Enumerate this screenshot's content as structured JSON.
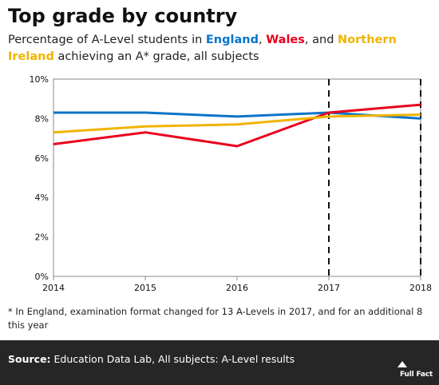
{
  "header": {
    "title": "Top grade by country",
    "subtitle_prefix": "Percentage of A-Level students in ",
    "subtitle_england": "England",
    "subtitle_sep1": ", ",
    "subtitle_wales": "Wales",
    "subtitle_sep2": ", and ",
    "subtitle_ni": "Northern Ireland",
    "subtitle_suffix": " achieving an A* grade, all subjects"
  },
  "footnote": "* In England, examination format changed for 13 A-Levels in 2017, and for an additional 8 this year",
  "footer": {
    "source_label": "Source:",
    "source_text": " Education Data Lab, All subjects: A-Level results",
    "logo_text": "Full Fact"
  },
  "colors": {
    "england": "#0b75c9",
    "wales": "#e8001d",
    "northern_ireland": "#f0b400",
    "footer_bg": "#262626"
  },
  "chart_data": {
    "type": "line",
    "title": "Top grade by country",
    "x": [
      2014,
      2015,
      2016,
      2017,
      2018
    ],
    "x_tick_labels": [
      "2014",
      "2015",
      "2016",
      "2017",
      "2018"
    ],
    "ylim": [
      0,
      10
    ],
    "y_ticks": [
      0,
      2,
      4,
      6,
      8,
      10
    ],
    "y_tick_labels": [
      "0%",
      "2%",
      "4%",
      "6%",
      "8%",
      "10%"
    ],
    "grid": false,
    "dashed_markers_x": [
      2017,
      2018
    ],
    "series": [
      {
        "name": "England",
        "color": "#0b75c9",
        "values": [
          8.3,
          8.3,
          8.1,
          8.3,
          8.0
        ]
      },
      {
        "name": "Wales",
        "color": "#e8001d",
        "values": [
          6.7,
          7.3,
          6.6,
          8.3,
          8.7
        ]
      },
      {
        "name": "Northern Ireland",
        "color": "#f0b400",
        "values": [
          7.3,
          7.6,
          7.7,
          8.1,
          8.2
        ]
      }
    ]
  }
}
